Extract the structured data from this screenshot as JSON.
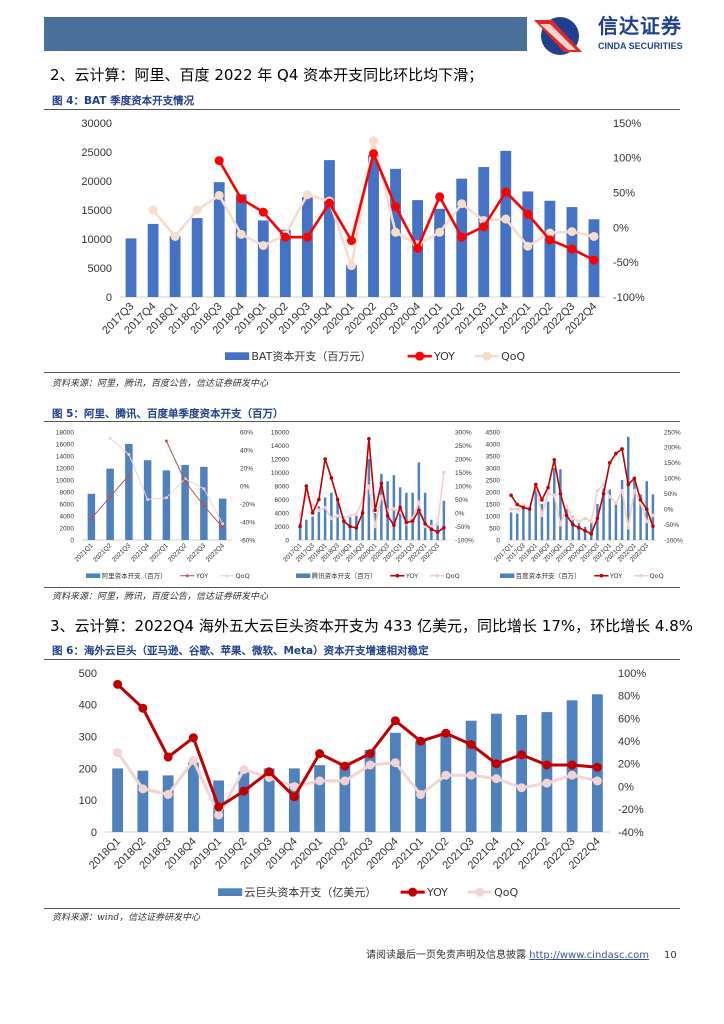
{
  "header": {
    "logo_cn": "信达证券",
    "logo_en": "CINDA SECURITIES",
    "band_color": "#4a6f9a"
  },
  "sections": [
    {
      "heading": "2、云计算：阿里、百度 2022 年 Q4 资本开支同比环比均下滑；"
    },
    {
      "heading": "3、云计算：2022Q4 海外五大云巨头资本开支为 433 亿美元，同比增长 17%，环比增长 4.8%"
    }
  ],
  "figures": [
    {
      "caption": "图 4：BAT 季度资本开支情况",
      "source": "资料来源：阿里，腾讯，百度公告，信达证券研发中心"
    },
    {
      "caption": "图 5：阿里、腾讯、百度单季度资本开支（百万）",
      "source": "资料来源：阿里，腾讯，百度公告，信达证券研发中心"
    },
    {
      "caption": "图 6：海外云巨头（亚马逊、谷歌、苹果、微软、Meta）资本开支增速相对稳定",
      "source": "资料来源：wind，信达证券研发中心"
    }
  ],
  "footer": {
    "text": "请阅读最后一页免责声明及信息披露",
    "link": "http://www.cindasc.com",
    "page": "10"
  },
  "chart_data": [
    {
      "type": "bar+line",
      "categories": [
        "2017Q3",
        "2017Q4",
        "2018Q1",
        "2018Q2",
        "2018Q3",
        "2018Q4",
        "2019Q1",
        "2019Q2",
        "2019Q3",
        "2019Q4",
        "2020Q1",
        "2020Q2",
        "2020Q3",
        "2020Q4",
        "2021Q1",
        "2021Q2",
        "2021Q3",
        "2021Q4",
        "2022Q1",
        "2022Q2",
        "2022Q3",
        "2022Q4"
      ],
      "series": [
        {
          "name": "BAT资本开支（百万元）",
          "kind": "bar",
          "axis": "left",
          "color": "#4472c4",
          "values": [
            10100,
            12600,
            10500,
            13600,
            19800,
            17700,
            13200,
            11600,
            17200,
            23600,
            5500,
            24500,
            22100,
            16700,
            15200,
            20400,
            22400,
            25200,
            18200,
            16600,
            15500,
            13400
          ]
        },
        {
          "name": "YOY",
          "kind": "line",
          "axis": "right",
          "color": "#ff0000",
          "values": [
            null,
            null,
            null,
            null,
            96,
            41,
            22,
            -14,
            -14,
            35,
            -19,
            106,
            30,
            -30,
            44,
            -14,
            1,
            51,
            19,
            -18,
            -31,
            -47
          ]
        },
        {
          "name": "QoQ",
          "kind": "line",
          "axis": "right",
          "color": "#f8dccc",
          "values": [
            null,
            25,
            -13,
            25,
            46,
            -10,
            -26,
            -11,
            47,
            38,
            -55,
            124,
            -7,
            -25,
            -7,
            34,
            10,
            12,
            -27,
            -8,
            -6,
            -13
          ]
        }
      ],
      "ylim": [
        0,
        30000
      ],
      "yticks": [
        0,
        5000,
        10000,
        15000,
        20000,
        25000,
        30000
      ],
      "y2lim": [
        -100,
        150
      ],
      "y2ticks": [
        -100,
        -50,
        0,
        50,
        100,
        150
      ],
      "y2unit": "%",
      "legend": "bottom",
      "grid": false
    },
    {
      "type": "bar+line",
      "categories": [
        "2021Q1",
        "2021Q2",
        "2021Q3",
        "2021Q4",
        "2022Q1",
        "2022Q2",
        "2022Q3",
        "2022Q4"
      ],
      "series": [
        {
          "name": "阿里资本开支（百万）",
          "kind": "bar",
          "axis": "left",
          "color": "#4f81bd",
          "values": [
            7700,
            11900,
            16000,
            13300,
            11600,
            12500,
            12200,
            6900
          ]
        },
        {
          "name": "YOY",
          "kind": "line",
          "axis": "right",
          "color": "#c0504d",
          "values": [
            -36,
            -12,
            12,
            null,
            50,
            5,
            -22,
            -46
          ]
        },
        {
          "name": "QoQ",
          "kind": "line",
          "axis": "right",
          "color": "#f2d0d0",
          "values": [
            null,
            53,
            35,
            -15,
            -13,
            8,
            -3,
            -42
          ]
        }
      ],
      "ylim": [
        0,
        18000
      ],
      "yticks": [
        0,
        2000,
        4000,
        6000,
        8000,
        10000,
        12000,
        14000,
        16000,
        18000
      ],
      "y2lim": [
        -60,
        60
      ],
      "y2ticks": [
        -60,
        -40,
        -20,
        0,
        20,
        40,
        60
      ],
      "y2unit": "%",
      "legend": "bottom",
      "grid": false
    },
    {
      "type": "bar+line",
      "categories": [
        "2017Q1",
        "2017Q2",
        "2017Q3",
        "2017Q4",
        "2018Q1",
        "2018Q2",
        "2018Q3",
        "2018Q4",
        "2019Q1",
        "2019Q2",
        "2019Q3",
        "2019Q4",
        "2020Q1",
        "2020Q2",
        "2020Q3",
        "2020Q4",
        "2021Q1",
        "2021Q2",
        "2021Q3",
        "2021Q4",
        "2022Q1",
        "2022Q2",
        "2022Q3",
        "2022Q4"
      ],
      "series": [
        {
          "name": "腾讯资本开支（百万）",
          "kind": "bar",
          "axis": "left",
          "color": "#4f81bd",
          "values": [
            2500,
            3000,
            3500,
            5000,
            6300,
            7000,
            6000,
            3500,
            3500,
            4000,
            4500,
            12000,
            4000,
            9800,
            8700,
            9600,
            7800,
            7000,
            7000,
            11500,
            7000,
            3000,
            2500,
            5800
          ]
        },
        {
          "name": "YOY",
          "kind": "line",
          "axis": "right",
          "color": "#c00000",
          "values": [
            -50,
            100,
            0,
            50,
            200,
            130,
            50,
            -30,
            -50,
            -55,
            0,
            275,
            10,
            110,
            -10,
            -45,
            20,
            -35,
            -30,
            10,
            -40,
            -60,
            -70,
            -55
          ]
        },
        {
          "name": "QoQ",
          "kind": "line",
          "axis": "right",
          "color": "#f2d0d0",
          "values": [
            -10,
            60,
            30,
            10,
            20,
            -20,
            -10,
            -20,
            -10,
            -5,
            50,
            100,
            -50,
            60,
            10,
            15,
            5,
            -40,
            -20,
            40,
            -50,
            -50,
            -40,
            150
          ]
        }
      ],
      "ylim": [
        0,
        16000
      ],
      "yticks": [
        0,
        2000,
        4000,
        6000,
        8000,
        10000,
        12000,
        14000,
        16000
      ],
      "y2lim": [
        -100,
        300
      ],
      "y2ticks": [
        -100,
        -50,
        0,
        50,
        100,
        150,
        200,
        250,
        300
      ],
      "y2unit": "%",
      "legend": "bottom",
      "grid": false
    },
    {
      "type": "bar+line",
      "categories": [
        "2017Q1",
        "2017Q2",
        "2017Q3",
        "2017Q4",
        "2018Q1",
        "2018Q2",
        "2018Q3",
        "2018Q4",
        "2019Q1",
        "2019Q2",
        "2019Q3",
        "2019Q4",
        "2020Q1",
        "2020Q2",
        "2020Q3",
        "2020Q4",
        "2021Q1",
        "2021Q2",
        "2021Q3",
        "2021Q4",
        "2022Q1",
        "2022Q2",
        "2022Q3",
        "2022Q4"
      ],
      "series": [
        {
          "name": "百度资本开支（百万）",
          "kind": "bar",
          "axis": "left",
          "color": "#4f81bd",
          "values": [
            1150,
            1100,
            1300,
            1300,
            2200,
            1500,
            1600,
            3000,
            2950,
            1300,
            1000,
            700,
            550,
            700,
            1500,
            2150,
            2100,
            1500,
            2500,
            4300,
            2600,
            1900,
            2450,
            1900
          ]
        },
        {
          "name": "YOY",
          "kind": "line",
          "axis": "right",
          "color": "#c00000",
          "values": [
            45,
            15,
            5,
            0,
            80,
            30,
            70,
            160,
            50,
            -20,
            -50,
            -60,
            -70,
            -80,
            -30,
            50,
            150,
            180,
            195,
            80,
            100,
            30,
            0,
            -55
          ]
        },
        {
          "name": "QoQ",
          "kind": "line",
          "axis": "right",
          "color": "#f2d0d0",
          "values": [
            0,
            0,
            15,
            0,
            80,
            -20,
            50,
            45,
            -50,
            10,
            -30,
            -40,
            -30,
            -40,
            60,
            80,
            40,
            20,
            60,
            -60,
            60,
            20,
            -40,
            -20
          ]
        }
      ],
      "ylim": [
        0,
        4500
      ],
      "yticks": [
        0,
        500,
        1000,
        1500,
        2000,
        2500,
        3000,
        3500,
        4000,
        4500
      ],
      "y2lim": [
        -100,
        250
      ],
      "y2ticks": [
        -100,
        -50,
        0,
        50,
        100,
        150,
        200,
        250
      ],
      "y2unit": "%",
      "legend": "bottom",
      "grid": false
    },
    {
      "type": "bar+line",
      "categories": [
        "2018Q1",
        "2018Q2",
        "2018Q3",
        "2018Q4",
        "2019Q1",
        "2019Q2",
        "2019Q3",
        "2019Q4",
        "2020Q1",
        "2020Q2",
        "2020Q3",
        "2020Q4",
        "2021Q1",
        "2021Q2",
        "2021Q3",
        "2021Q4",
        "2022Q1",
        "2022Q2",
        "2022Q3",
        "2022Q4"
      ],
      "series": [
        {
          "name": "云巨头资本开支（亿美元）",
          "kind": "bar",
          "axis": "left",
          "color": "#4f81bd",
          "values": [
            200,
            193,
            178,
            218,
            162,
            190,
            200,
            200,
            210,
            218,
            258,
            312,
            285,
            308,
            350,
            372,
            368,
            377,
            414,
            433
          ]
        },
        {
          "name": "YOY",
          "kind": "line",
          "axis": "right",
          "color": "#c00000",
          "values": [
            90,
            69,
            26,
            43,
            -18,
            -4,
            13,
            -9,
            29,
            18,
            29,
            58,
            40,
            47,
            37,
            20,
            28,
            19,
            19,
            17
          ]
        },
        {
          "name": "QoQ",
          "kind": "line",
          "axis": "right",
          "color": "#f2d4d4",
          "values": [
            30,
            -2,
            -7,
            23,
            -25,
            15,
            8,
            0,
            5,
            5,
            19,
            21,
            -7,
            10,
            10,
            7,
            -1,
            3,
            10,
            5
          ]
        }
      ],
      "ylim": [
        0,
        500
      ],
      "yticks": [
        0,
        100,
        200,
        300,
        400,
        500
      ],
      "y2lim": [
        -40,
        100
      ],
      "y2ticks": [
        -40,
        -20,
        0,
        20,
        40,
        60,
        80,
        100
      ],
      "y2unit": "%",
      "legend": "bottom",
      "grid": false
    }
  ]
}
